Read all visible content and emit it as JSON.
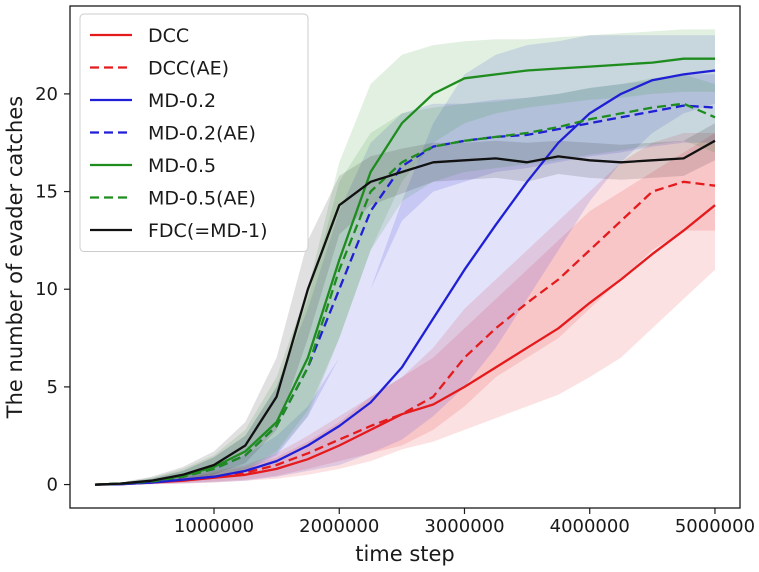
{
  "chart_data": {
    "type": "line",
    "title": "",
    "xlabel": "time step",
    "ylabel": "The number of evader catches",
    "xlim": [
      -150000,
      5200000
    ],
    "ylim": [
      -1.2,
      24.5
    ],
    "xticks": [
      1000000,
      2000000,
      3000000,
      4000000,
      5000000
    ],
    "xtick_labels": [
      "1000000",
      "2000000",
      "3000000",
      "4000000",
      "5000000"
    ],
    "yticks": [
      0,
      5,
      10,
      15,
      20
    ],
    "ytick_labels": [
      "0",
      "5",
      "10",
      "15",
      "20"
    ],
    "grid": false,
    "legend_position": "top-left",
    "series": [
      {
        "name": "DCC",
        "color": "#e41a1c",
        "dash": "solid",
        "x": [
          50000,
          250000,
          500000,
          750000,
          1000000,
          1250000,
          1500000,
          1750000,
          2000000,
          2250000,
          2500000,
          2750000,
          3000000,
          3250000,
          3500000,
          3750000,
          4000000,
          4250000,
          4500000,
          4750000,
          5000000
        ],
        "y": [
          0,
          0.02,
          0.1,
          0.2,
          0.35,
          0.5,
          0.8,
          1.3,
          2.0,
          2.8,
          3.6,
          4.1,
          5.0,
          6.0,
          7.0,
          8.0,
          9.3,
          10.5,
          11.8,
          13.0,
          14.3
        ],
        "upper": [
          0,
          0.05,
          0.2,
          0.35,
          0.6,
          0.9,
          1.4,
          2.2,
          3.2,
          4.5,
          5.5,
          6.5,
          8.0,
          9.5,
          11.0,
          12.5,
          14.0,
          15.0,
          16.0,
          17.0,
          18.0
        ],
        "lower": [
          0,
          0,
          0.02,
          0.05,
          0.1,
          0.2,
          0.3,
          0.5,
          0.8,
          1.2,
          1.8,
          2.2,
          2.8,
          3.4,
          4.0,
          4.6,
          5.5,
          6.5,
          8.0,
          9.5,
          11.0
        ]
      },
      {
        "name": "DCC(AE)",
        "color": "#e41a1c",
        "dash": "dashed",
        "x": [
          50000,
          250000,
          500000,
          750000,
          1000000,
          1250000,
          1500000,
          1750000,
          2000000,
          2250000,
          2500000,
          2750000,
          3000000,
          3250000,
          3500000,
          3750000,
          4000000,
          4250000,
          4500000,
          4750000,
          5000000
        ],
        "y": [
          0,
          0.03,
          0.12,
          0.25,
          0.4,
          0.6,
          1.0,
          1.6,
          2.3,
          3.0,
          3.6,
          4.5,
          6.5,
          8.0,
          9.3,
          10.5,
          12.0,
          13.5,
          15.0,
          15.5,
          15.3
        ],
        "upper": [
          0,
          0.06,
          0.2,
          0.4,
          0.7,
          1.0,
          1.6,
          2.5,
          3.5,
          4.5,
          5.5,
          7.0,
          9.0,
          10.5,
          12.0,
          13.5,
          15.0,
          16.5,
          17.5,
          18.0,
          18.0
        ],
        "lower": [
          0,
          0,
          0.03,
          0.08,
          0.15,
          0.25,
          0.45,
          0.8,
          1.2,
          1.6,
          2.0,
          2.8,
          4.0,
          5.5,
          6.5,
          7.5,
          9.0,
          10.5,
          12.0,
          13.0,
          13.0
        ]
      },
      {
        "name": "MD-0.2",
        "color": "#1f1fd6",
        "dash": "solid",
        "x": [
          50000,
          250000,
          500000,
          750000,
          1000000,
          1250000,
          1500000,
          1750000,
          2000000,
          2250000,
          2500000,
          2750000,
          3000000,
          3250000,
          3500000,
          3750000,
          4000000,
          4250000,
          4500000,
          4750000,
          5000000
        ],
        "y": [
          0,
          0.02,
          0.1,
          0.25,
          0.4,
          0.7,
          1.2,
          2.0,
          3.0,
          4.2,
          6.0,
          8.5,
          11.0,
          13.3,
          15.5,
          17.5,
          19.0,
          20.0,
          20.7,
          21.0,
          21.2
        ],
        "upper": [
          0,
          0.06,
          0.25,
          0.5,
          0.9,
          1.5,
          2.5,
          4.0,
          6.5,
          10.0,
          14.5,
          18.5,
          21.0,
          22.0,
          22.5,
          22.7,
          23.0,
          23.0,
          23.0,
          23.0,
          23.0
        ],
        "lower": [
          0,
          0,
          0.02,
          0.06,
          0.12,
          0.2,
          0.4,
          0.7,
          1.0,
          1.6,
          2.3,
          3.5,
          5.0,
          7.0,
          9.5,
          12.0,
          14.5,
          16.5,
          18.0,
          19.0,
          19.5
        ]
      },
      {
        "name": "MD-0.2(AE)",
        "color": "#1f1fd6",
        "dash": "dashed",
        "x": [
          50000,
          250000,
          500000,
          750000,
          1000000,
          1250000,
          1500000,
          1750000,
          2000000,
          2250000,
          2500000,
          2750000,
          3000000,
          3250000,
          3500000,
          3750000,
          4000000,
          4250000,
          4500000,
          4750000,
          5000000
        ],
        "y": [
          0,
          0.05,
          0.15,
          0.4,
          0.8,
          1.5,
          3.0,
          6.0,
          10.0,
          14.0,
          16.3,
          17.3,
          17.6,
          17.8,
          17.9,
          18.2,
          18.5,
          18.8,
          19.1,
          19.4,
          19.3
        ],
        "upper": [
          0,
          0.1,
          0.3,
          0.7,
          1.4,
          2.5,
          5.0,
          9.0,
          14.0,
          17.5,
          19.0,
          19.5,
          19.5,
          19.7,
          19.8,
          20.0,
          20.3,
          20.5,
          20.7,
          21.0,
          21.0
        ],
        "lower": [
          0,
          0.01,
          0.05,
          0.15,
          0.35,
          0.7,
          1.5,
          3.5,
          6.5,
          10.0,
          13.5,
          15.0,
          15.5,
          16.0,
          16.2,
          16.5,
          16.8,
          17.0,
          17.3,
          17.5,
          17.5
        ]
      },
      {
        "name": "MD-0.5",
        "color": "#1e8c1e",
        "dash": "solid",
        "x": [
          50000,
          250000,
          500000,
          750000,
          1000000,
          1250000,
          1500000,
          1750000,
          2000000,
          2250000,
          2500000,
          2750000,
          3000000,
          3250000,
          3500000,
          3750000,
          4000000,
          4250000,
          4500000,
          4750000,
          5000000
        ],
        "y": [
          0,
          0.05,
          0.18,
          0.45,
          0.9,
          1.7,
          3.2,
          6.5,
          11.5,
          16.0,
          18.5,
          20.0,
          20.8,
          21.0,
          21.2,
          21.3,
          21.4,
          21.5,
          21.6,
          21.8,
          21.8
        ],
        "upper": [
          0,
          0.1,
          0.35,
          0.8,
          1.5,
          2.8,
          5.5,
          10.0,
          16.5,
          20.5,
          22.0,
          22.5,
          22.7,
          22.8,
          22.8,
          22.9,
          23.0,
          23.1,
          23.2,
          23.3,
          23.3
        ],
        "lower": [
          0,
          0.01,
          0.06,
          0.18,
          0.4,
          0.8,
          1.7,
          3.8,
          7.5,
          12.0,
          15.5,
          17.5,
          18.5,
          19.0,
          19.3,
          19.5,
          19.7,
          19.8,
          20.0,
          20.1,
          20.1
        ]
      },
      {
        "name": "MD-0.5(AE)",
        "color": "#1e8c1e",
        "dash": "dashed",
        "x": [
          50000,
          250000,
          500000,
          750000,
          1000000,
          1250000,
          1500000,
          1750000,
          2000000,
          2250000,
          2500000,
          2750000,
          3000000,
          3250000,
          3500000,
          3750000,
          4000000,
          4250000,
          4500000,
          4750000,
          5000000
        ],
        "y": [
          0,
          0.05,
          0.15,
          0.4,
          0.8,
          1.5,
          3.0,
          6.0,
          11.0,
          15.0,
          16.5,
          17.3,
          17.6,
          17.8,
          18.0,
          18.3,
          18.7,
          19.0,
          19.3,
          19.5,
          18.8
        ],
        "upper": [
          0,
          0.1,
          0.3,
          0.7,
          1.4,
          2.5,
          5.0,
          9.5,
          15.5,
          18.0,
          19.0,
          19.3,
          19.5,
          19.6,
          19.8,
          20.0,
          20.3,
          20.5,
          20.8,
          21.0,
          20.5
        ],
        "lower": [
          0,
          0.01,
          0.05,
          0.15,
          0.35,
          0.7,
          1.6,
          3.5,
          7.5,
          12.0,
          14.5,
          15.5,
          16.0,
          16.2,
          16.4,
          16.6,
          16.9,
          17.1,
          17.4,
          17.6,
          17.0
        ]
      },
      {
        "name": "FDC(=MD-1)",
        "color": "#111111",
        "dash": "solid",
        "x": [
          50000,
          250000,
          500000,
          750000,
          1000000,
          1250000,
          1500000,
          1750000,
          2000000,
          2250000,
          2500000,
          2750000,
          3000000,
          3250000,
          3500000,
          3750000,
          4000000,
          4250000,
          4500000,
          4750000,
          5000000
        ],
        "y": [
          0,
          0.05,
          0.2,
          0.5,
          1.0,
          2.0,
          4.5,
          10.0,
          14.3,
          15.5,
          16.0,
          16.5,
          16.6,
          16.7,
          16.5,
          16.8,
          16.6,
          16.5,
          16.6,
          16.7,
          17.6
        ],
        "upper": [
          0,
          0.1,
          0.4,
          0.9,
          1.7,
          3.2,
          6.5,
          12.5,
          15.8,
          16.8,
          17.2,
          17.5,
          17.5,
          17.6,
          17.5,
          17.6,
          17.5,
          17.4,
          17.5,
          17.6,
          18.5
        ],
        "lower": [
          0,
          0.01,
          0.08,
          0.2,
          0.5,
          1.1,
          2.8,
          7.5,
          12.8,
          14.3,
          14.9,
          15.5,
          15.6,
          15.7,
          15.5,
          15.9,
          15.7,
          15.6,
          15.7,
          15.8,
          16.6
        ]
      }
    ]
  }
}
